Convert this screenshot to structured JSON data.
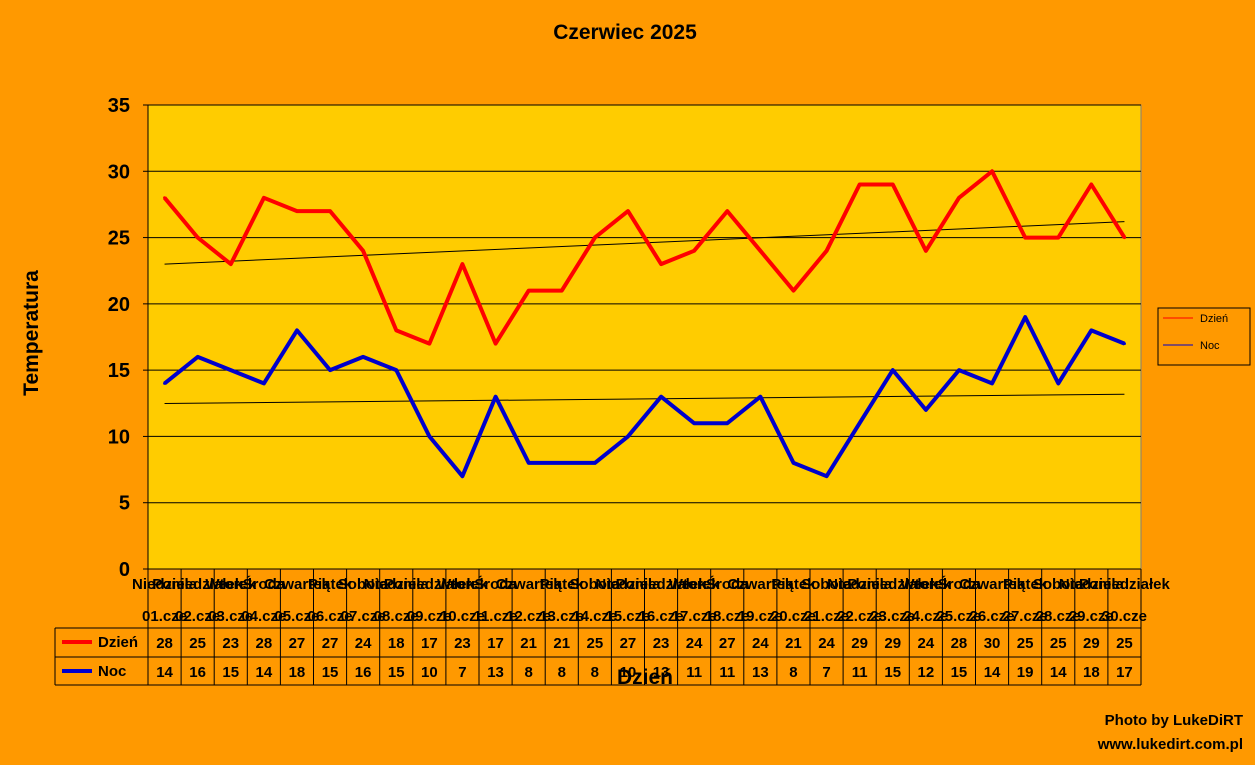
{
  "chart_data": {
    "type": "line",
    "title": "Czerwiec 2025",
    "xlabel": "Dzień",
    "ylabel": "Temperatura",
    "ylim": [
      0,
      35
    ],
    "yticks": [
      "0",
      "5",
      "10",
      "15",
      "20",
      "25",
      "30",
      "35"
    ],
    "grid": true,
    "legend_position": "right",
    "legend": [
      "Dzień",
      "Noc"
    ],
    "plot_background": "#FFCC00",
    "page_background": "#FF9900",
    "weekdays": [
      "Niedziela",
      "Poniedziałek",
      "Wtorek",
      "Środa",
      "Czwartek",
      "Piątek",
      "Sobota",
      "Niedziela",
      "Poniedziałek",
      "Wtorek",
      "Środa",
      "Czwartek",
      "Piątek",
      "Sobota",
      "Niedziela",
      "Poniedziałek",
      "Wtorek",
      "Środa",
      "Czwartek",
      "Piątek",
      "Sobota",
      "Niedziela",
      "Poniedziałek",
      "Wtorek",
      "Środa",
      "Czwartek",
      "Piątek",
      "Sobota",
      "Niedziela",
      "Poniedziałek"
    ],
    "categories": [
      "01.cze",
      "02.cze",
      "03.cze",
      "04.cze",
      "05.cze",
      "06.cze",
      "07.cze",
      "08.cze",
      "09.cze",
      "10.cze",
      "11.cze",
      "12.cze",
      "13.cze",
      "14.cze",
      "15.cze",
      "16.cze",
      "17.cze",
      "18.cze",
      "19.cze",
      "20.cze",
      "21.cze",
      "22.cze",
      "23.cze",
      "24.cze",
      "25.cze",
      "26.cze",
      "27.cze",
      "28.cze",
      "29.cze",
      "30.cze"
    ],
    "series": [
      {
        "name": "Dzień",
        "color": "#FF0000",
        "values": [
          28,
          25,
          23,
          28,
          27,
          27,
          24,
          18,
          17,
          23,
          17,
          21,
          21,
          25,
          27,
          23,
          24,
          27,
          24,
          21,
          24,
          29,
          29,
          24,
          28,
          30,
          25,
          25,
          29,
          25
        ]
      },
      {
        "name": "Noc",
        "color": "#0000CC",
        "values": [
          14,
          16,
          15,
          14,
          18,
          15,
          16,
          15,
          10,
          7,
          13,
          8,
          8,
          8,
          10,
          13,
          11,
          11,
          13,
          8,
          7,
          11,
          15,
          12,
          15,
          14,
          19,
          14,
          18,
          17
        ]
      }
    ],
    "trendline_color": "#000000"
  },
  "credits": {
    "line1": "Photo by LukeDiRT",
    "line2": "www.lukedirt.com.pl"
  }
}
